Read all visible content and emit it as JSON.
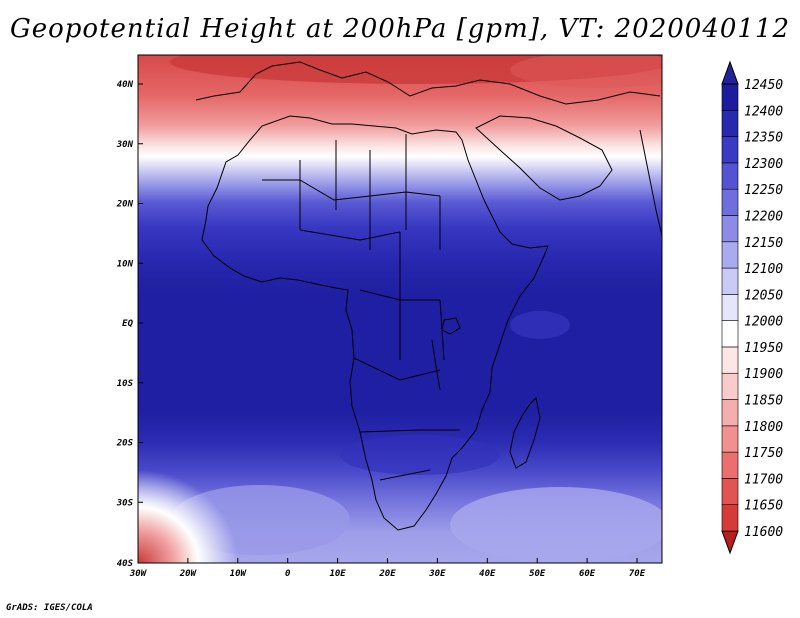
{
  "title": "Geopotential Height at 200hPa [gpm], VT: 2020040112",
  "credit": "GrADS: IGES/COLA",
  "lat_ticks": [
    "40N",
    "30N",
    "20N",
    "10N",
    "EQ",
    "10S",
    "20S",
    "30S",
    "40S"
  ],
  "lon_ticks": [
    "30W",
    "20W",
    "10W",
    "0",
    "10E",
    "20E",
    "30E",
    "40E",
    "50E",
    "60E",
    "70E"
  ],
  "colorbar": {
    "labels": [
      "12450",
      "12400",
      "12350",
      "12300",
      "12250",
      "12200",
      "12150",
      "12100",
      "12050",
      "12000",
      "11950",
      "11900",
      "11850",
      "11800",
      "11750",
      "11700",
      "11650",
      "11600"
    ],
    "colors": [
      "#b51f20",
      "#d63b3c",
      "#e25454",
      "#ea7070",
      "#f09090",
      "#f5aeae",
      "#f9cbcb",
      "#fde6e6",
      "#ffffff",
      "#e6e6fb",
      "#cacaf5",
      "#aaaaee",
      "#8c8ce6",
      "#6e6edd",
      "#5454d2",
      "#3a3ac3",
      "#2929ae",
      "#1c1c9c",
      "#22229a"
    ],
    "colors_note_order": "bottom-to-top"
  },
  "chart_data": {
    "type": "heatmap",
    "field": "200hPa geopotential height",
    "units": "gpm",
    "x_range": [
      -30,
      75
    ],
    "y_range": [
      -40,
      45
    ],
    "colorbar_range": [
      11600,
      12450
    ]
  }
}
